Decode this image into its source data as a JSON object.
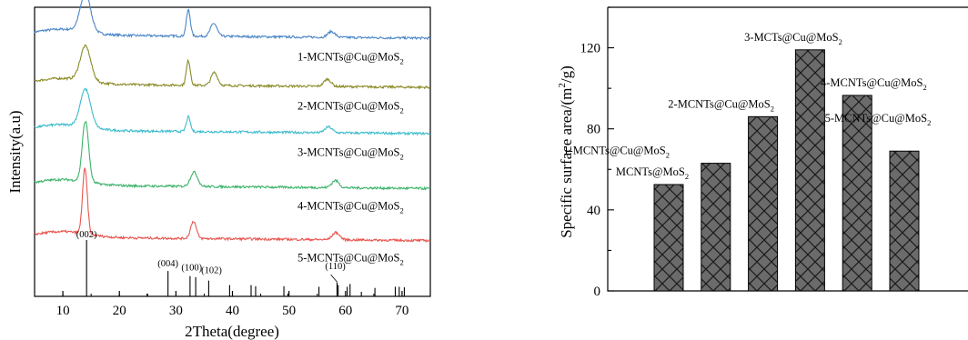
{
  "colors": {
    "series": [
      "#4a86c8",
      "#8a8b28",
      "#3bbccc",
      "#3cb36a",
      "#e8554f"
    ],
    "bar_fill": "#6b6b6b",
    "bar_hatch": "#1a1a1a"
  },
  "chart_data": [
    {
      "type": "line",
      "title": "",
      "xlabel": "2Theta(degree)",
      "ylabel": "Intensity(a.u)",
      "xlim": [
        5,
        75
      ],
      "xticks": [
        "10",
        "20",
        "30",
        "40",
        "50",
        "60",
        "70"
      ],
      "grid": false,
      "series": [
        {
          "name": "1-MCNTs@Cu@MoS",
          "sub": "2",
          "baseline": 0.905,
          "peaks": [
            [
              14,
              0.13,
              1.3
            ],
            [
              32.2,
              0.09,
              0.5
            ],
            [
              36.7,
              0.045,
              0.8
            ],
            [
              57.5,
              0.02,
              0.9
            ]
          ]
        },
        {
          "name": "2-MCNTs@Cu@MoS",
          "sub": "2",
          "baseline": 0.735,
          "peaks": [
            [
              14,
              0.12,
              1.3
            ],
            [
              32.2,
              0.085,
              0.5
            ],
            [
              36.8,
              0.045,
              0.8
            ],
            [
              56.8,
              0.025,
              0.9
            ]
          ]
        },
        {
          "name": "3-MCNTs@Cu@MoS",
          "sub": "2",
          "baseline": 0.575,
          "peaks": [
            [
              14,
              0.13,
              1.3
            ],
            [
              32.2,
              0.05,
              0.5
            ],
            [
              57,
              0.02,
              0.9
            ]
          ]
        },
        {
          "name": "4-MCNTs@Cu@MoS",
          "sub": "2",
          "baseline": 0.385,
          "peaks": [
            [
              14,
              0.21,
              0.8
            ],
            [
              33.2,
              0.05,
              0.9
            ],
            [
              58.2,
              0.025,
              0.9
            ]
          ]
        },
        {
          "name": "5-MCNTs@Cu@MoS",
          "sub": "2",
          "baseline": 0.205,
          "peaks": [
            [
              13.9,
              0.225,
              0.6
            ],
            [
              33.1,
              0.06,
              0.7
            ],
            [
              58.3,
              0.025,
              0.9
            ]
          ]
        }
      ],
      "reference_lines": [
        {
          "x": 14.2,
          "h": 1.0
        },
        {
          "x": 28.6,
          "h": 0.45
        },
        {
          "x": 32.5,
          "h": 0.36
        },
        {
          "x": 33.5,
          "h": 0.34
        },
        {
          "x": 35.8,
          "h": 0.28
        },
        {
          "x": 39.5,
          "h": 0.2
        },
        {
          "x": 43.3,
          "h": 0.2
        },
        {
          "x": 44.1,
          "h": 0.18
        },
        {
          "x": 49.1,
          "h": 0.18
        },
        {
          "x": 49.8,
          "h": 0.05
        },
        {
          "x": 55.3,
          "h": 0.17
        },
        {
          "x": 58.5,
          "h": 0.25
        },
        {
          "x": 58.7,
          "h": 0.2
        },
        {
          "x": 60.3,
          "h": 0.17
        },
        {
          "x": 60.8,
          "h": 0.22
        },
        {
          "x": 62.8,
          "h": 0.08
        },
        {
          "x": 65.2,
          "h": 0.15
        },
        {
          "x": 68.8,
          "h": 0.17
        },
        {
          "x": 69.5,
          "h": 0.17
        },
        {
          "x": 70.4,
          "h": 0.16
        },
        {
          "x": 10.0,
          "h": 0.05
        },
        {
          "x": 20.0,
          "h": 0.04
        },
        {
          "x": 24.9,
          "h": 0.05
        }
      ],
      "annotations": [
        {
          "text": "(002)",
          "x": 14.2
        },
        {
          "text": "(004)",
          "x": 28.6
        },
        {
          "text": "(100)",
          "x": 32.8
        },
        {
          "text": "(102)",
          "x": 36.3
        },
        {
          "text": "(110)",
          "x": 58.2
        }
      ]
    },
    {
      "type": "bar",
      "title": "",
      "xlabel": "",
      "ylabel": "Specific surface area/(m",
      "ylabel_sup": "2",
      "ylabel_end": "/g)",
      "ylim": [
        0,
        140
      ],
      "yticks": [
        "0",
        "40",
        "80",
        "120"
      ],
      "grid": false,
      "categories": [
        "MCNTs@MoS",
        "1-MCNTs@Cu@MoS",
        "2-MCNTs@Cu@MoS",
        "3-MCTs@Cu@MoS",
        "4-MCNTs@Cu@MoS",
        "5-MCNTs@Cu@MoS"
      ],
      "category_sub": "2",
      "values": [
        52.5,
        63,
        86,
        119,
        96.5,
        69
      ]
    }
  ]
}
